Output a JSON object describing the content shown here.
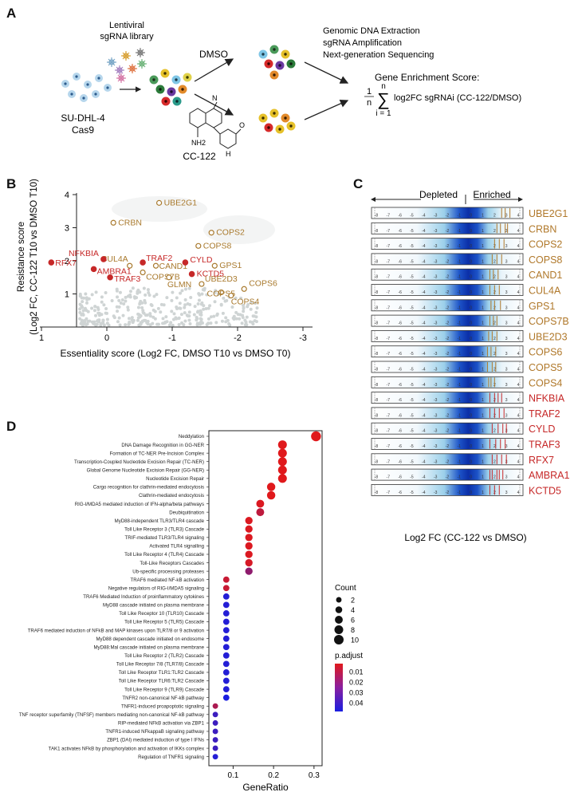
{
  "panel_labels": {
    "a": "A",
    "b": "B",
    "c": "C",
    "d": "D"
  },
  "panel_a": {
    "cell_line": "SU-DHL-4",
    "cas9": "Cas9",
    "library_line1": "Lentiviral",
    "library_line2": "sgRNA library",
    "dmso": "DMSO",
    "drug": "CC-122",
    "drug_nh2": "NH2",
    "drug_o": "O",
    "drug_n": "N",
    "drug_h": "H",
    "steps": [
      "Genomic DNA Extraction",
      "sgRNA Amplification",
      "Next-generation Sequencing"
    ],
    "score_title": "Gene Enrichment Score:",
    "formula_1": "1",
    "formula_n": "n",
    "formula_top_n": "n",
    "formula_sum": "∑",
    "formula_i": "i = 1",
    "formula_expr": "log2FC sgRNAi (CC-122/DMSO)"
  },
  "panel_b": {
    "chart_data": {
      "type": "scatter",
      "xlabel": "Essentiality score (Log2 FC, DMSO T10 vs DMSO T0)",
      "ylabel_line1": "Resistance score",
      "ylabel_line2": "(Log2 FC, CC-122 T10 vs DMSO T10)",
      "x_ticks": [
        "1",
        "0",
        "-1",
        "-2",
        "-3"
      ],
      "y_ticks": [
        "1",
        "2",
        "3",
        "4"
      ],
      "xlim": [
        1,
        -3.5
      ],
      "ylim": [
        0,
        4
      ],
      "points": [
        {
          "label": "UBE2G1",
          "x": -0.8,
          "y": 3.75,
          "group": "neddylation"
        },
        {
          "label": "CRBN",
          "x": -0.1,
          "y": 3.15,
          "group": "neddylation"
        },
        {
          "label": "COPS2",
          "x": -1.6,
          "y": 2.85,
          "group": "neddylation"
        },
        {
          "label": "COPS8",
          "x": -1.4,
          "y": 2.45,
          "group": "neddylation"
        },
        {
          "label": "CUL4A",
          "x": -0.35,
          "y": 1.85,
          "group": "neddylation"
        },
        {
          "label": "CAND1",
          "x": -0.75,
          "y": 1.85,
          "group": "neddylation"
        },
        {
          "label": "GPS1",
          "x": -1.65,
          "y": 1.85,
          "group": "neddylation"
        },
        {
          "label": "COPS7B",
          "x": -0.55,
          "y": 1.65,
          "group": "neddylation"
        },
        {
          "label": "GLMN",
          "x": -0.95,
          "y": 1.5,
          "group": "neddylation"
        },
        {
          "label": "UBE2D3",
          "x": -1.45,
          "y": 1.3,
          "group": "neddylation"
        },
        {
          "label": "COPS6",
          "x": -2.1,
          "y": 1.15,
          "group": "neddylation"
        },
        {
          "label": "COPS5",
          "x": -1.75,
          "y": 1.05,
          "group": "neddylation"
        },
        {
          "label": "COPS4",
          "x": -1.9,
          "y": 0.95,
          "group": "neddylation"
        },
        {
          "label": "NFKBIA",
          "x": 0.05,
          "y": 2.05,
          "group": "nfkb"
        },
        {
          "label": "RFX7",
          "x": 0.85,
          "y": 1.95,
          "group": "nfkb"
        },
        {
          "label": "TRAF2",
          "x": -0.55,
          "y": 1.95,
          "group": "nfkb"
        },
        {
          "label": "AMBRA1",
          "x": 0.2,
          "y": 1.75,
          "group": "nfkb"
        },
        {
          "label": "CYLD",
          "x": -1.2,
          "y": 1.95,
          "group": "nfkb"
        },
        {
          "label": "KCTD5",
          "x": -1.3,
          "y": 1.6,
          "group": "nfkb"
        },
        {
          "label": "TRAF3",
          "x": -0.05,
          "y": 1.5,
          "group": "nfkb"
        }
      ]
    }
  },
  "panel_c": {
    "depleted": "Depleted",
    "enriched": "Enriched",
    "axis_label": "Log2 FC (CC-122 vs DMSO)",
    "tick_labels": [
      "-8",
      "-7",
      "-6",
      "-5",
      "-4",
      "-3",
      "-2",
      "-1",
      "0",
      "1",
      "2",
      "3",
      "4"
    ],
    "genes": [
      {
        "name": "UBE2G1",
        "color": "#b0782a"
      },
      {
        "name": "CRBN",
        "color": "#b0782a"
      },
      {
        "name": "COPS2",
        "color": "#b0782a"
      },
      {
        "name": "COPS8",
        "color": "#b0782a"
      },
      {
        "name": "CAND1",
        "color": "#b0782a"
      },
      {
        "name": "CUL4A",
        "color": "#b0782a"
      },
      {
        "name": "GPS1",
        "color": "#b0782a"
      },
      {
        "name": "COPS7B",
        "color": "#b0782a"
      },
      {
        "name": "UBE2D3",
        "color": "#b0782a"
      },
      {
        "name": "COPS6",
        "color": "#b0782a"
      },
      {
        "name": "COPS5",
        "color": "#b0782a"
      },
      {
        "name": "COPS4",
        "color": "#b0782a"
      },
      {
        "name": "NFKBIA",
        "color": "#c62828"
      },
      {
        "name": "TRAF2",
        "color": "#c62828"
      },
      {
        "name": "CYLD",
        "color": "#c62828"
      },
      {
        "name": "TRAF3",
        "color": "#c62828"
      },
      {
        "name": "RFX7",
        "color": "#c62828"
      },
      {
        "name": "AMBRA1",
        "color": "#c62828"
      },
      {
        "name": "KCTD5",
        "color": "#c62828"
      }
    ]
  },
  "panel_d": {
    "chart_data": {
      "type": "scatter",
      "xlabel": "GeneRatio",
      "x_ticks": [
        "0.1",
        "0.2",
        "0.3"
      ],
      "xlim": [
        0.04,
        0.32
      ],
      "size_legend_title": "Count",
      "size_legend": [
        "2",
        "4",
        "6",
        "8",
        "10"
      ],
      "color_legend_title": "p.adjust",
      "color_legend_ticks": [
        "0.01",
        "0.02",
        "0.03",
        "0.04"
      ],
      "terms": [
        {
          "label": "Neddylation",
          "ratio": 0.305,
          "count": 11,
          "padj": 0.001
        },
        {
          "label": "DNA Damage Recognition in GG-NER",
          "ratio": 0.222,
          "count": 8,
          "padj": 0.001
        },
        {
          "label": "Formation of TC-NER Pre-Incision Complex",
          "ratio": 0.222,
          "count": 8,
          "padj": 0.001
        },
        {
          "label": "Transcription-Coupled Nucleotide Excision Repair (TC-NER)",
          "ratio": 0.222,
          "count": 8,
          "padj": 0.001
        },
        {
          "label": "Global Genome Nucleotide Excision Repair (GG-NER)",
          "ratio": 0.222,
          "count": 8,
          "padj": 0.001
        },
        {
          "label": "Nucleotide Excision Repair",
          "ratio": 0.222,
          "count": 8,
          "padj": 0.001
        },
        {
          "label": "Cargo recognition for clathrin-mediated endocytosis",
          "ratio": 0.194,
          "count": 7,
          "padj": 0.001
        },
        {
          "label": "Clathrin-mediated endocytosis",
          "ratio": 0.194,
          "count": 7,
          "padj": 0.001
        },
        {
          "label": "RIG-I/MDA5 mediated induction of IFN-alpha/beta pathways",
          "ratio": 0.167,
          "count": 6,
          "padj": 0.002
        },
        {
          "label": "Deubiquitination",
          "ratio": 0.167,
          "count": 6,
          "padj": 0.008
        },
        {
          "label": "MyD88-independent TLR3/TLR4 cascade",
          "ratio": 0.139,
          "count": 5,
          "padj": 0.002
        },
        {
          "label": "Toll Like Receptor 3 (TLR3) Cascade",
          "ratio": 0.139,
          "count": 5,
          "padj": 0.002
        },
        {
          "label": "TRIF-mediated TLR3/TLR4 signaling",
          "ratio": 0.139,
          "count": 5,
          "padj": 0.002
        },
        {
          "label": "Activated TLR4 signalling",
          "ratio": 0.139,
          "count": 5,
          "padj": 0.002
        },
        {
          "label": "Toll Like Receptor 4 (TLR4) Cascade",
          "ratio": 0.139,
          "count": 5,
          "padj": 0.002
        },
        {
          "label": "Toll-Like Receptors Cascades",
          "ratio": 0.139,
          "count": 5,
          "padj": 0.003
        },
        {
          "label": "Ub-specific processing proteases",
          "ratio": 0.139,
          "count": 5,
          "padj": 0.018
        },
        {
          "label": "TRAF6 mediated NF-kB activation",
          "ratio": 0.083,
          "count": 3,
          "padj": 0.006
        },
        {
          "label": "Negative regulators of RIG-I/MDA5 signaling",
          "ratio": 0.083,
          "count": 3,
          "padj": 0.006
        },
        {
          "label": "TRAF6 Mediated Induction of proinflammatory cytokines",
          "ratio": 0.083,
          "count": 3,
          "padj": 0.04
        },
        {
          "label": "MyD88 cascade initiated on plasma membrane",
          "ratio": 0.083,
          "count": 3,
          "padj": 0.04
        },
        {
          "label": "Toll Like Receptor 10 (TLR10) Cascade",
          "ratio": 0.083,
          "count": 3,
          "padj": 0.04
        },
        {
          "label": "Toll Like Receptor 5 (TLR5) Cascade",
          "ratio": 0.083,
          "count": 3,
          "padj": 0.04
        },
        {
          "label": "TRAF6 mediated induction of NFkB and MAP kinases upon TLR7/8 or 9 activation",
          "ratio": 0.083,
          "count": 3,
          "padj": 0.04
        },
        {
          "label": "MyD88 dependent cascade initiated on endosome",
          "ratio": 0.083,
          "count": 3,
          "padj": 0.04
        },
        {
          "label": "MyD88:Mal cascade initiated on plasma membrane",
          "ratio": 0.083,
          "count": 3,
          "padj": 0.04
        },
        {
          "label": "Toll Like Receptor 2 (TLR2) Cascade",
          "ratio": 0.083,
          "count": 3,
          "padj": 0.04
        },
        {
          "label": "Toll Like Receptor 7/8 (TLR7/8) Cascade",
          "ratio": 0.083,
          "count": 3,
          "padj": 0.04
        },
        {
          "label": "Toll Like Receptor TLR1:TLR2 Cascade",
          "ratio": 0.083,
          "count": 3,
          "padj": 0.04
        },
        {
          "label": "Toll Like Receptor TLR6:TLR2 Cascade",
          "ratio": 0.083,
          "count": 3,
          "padj": 0.04
        },
        {
          "label": "Toll Like Receptor 9 (TLR9) Cascade",
          "ratio": 0.083,
          "count": 3,
          "padj": 0.04
        },
        {
          "label": "TNFR2 non-canonical NF-kB pathway",
          "ratio": 0.083,
          "count": 3,
          "padj": 0.042
        },
        {
          "label": "TNFR1-induced proapoptotic signaling",
          "ratio": 0.056,
          "count": 2,
          "padj": 0.012
        },
        {
          "label": "TNF receptor superfamily (TNFSF) members mediating non-canonical NF-kB pathway",
          "ratio": 0.056,
          "count": 2,
          "padj": 0.035
        },
        {
          "label": "RIP-mediated NFkB activation via ZBP1",
          "ratio": 0.056,
          "count": 2,
          "padj": 0.035
        },
        {
          "label": "TNFR1-induced NFkappaB signaling pathway",
          "ratio": 0.056,
          "count": 2,
          "padj": 0.035
        },
        {
          "label": "ZBP1 (DAI) mediated induction of type I IFNs",
          "ratio": 0.056,
          "count": 2,
          "padj": 0.035
        },
        {
          "label": "TAK1 activates NFkB by phosphorylation and activation of IKKs complex",
          "ratio": 0.056,
          "count": 2,
          "padj": 0.035
        },
        {
          "label": "Regulation of TNFR1 signaling",
          "ratio": 0.056,
          "count": 2,
          "padj": 0.04
        }
      ]
    }
  }
}
